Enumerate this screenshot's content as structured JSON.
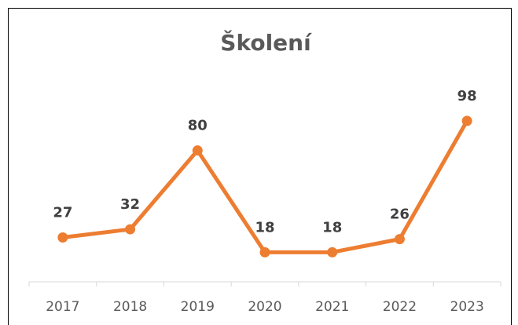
{
  "chart_data": {
    "type": "line",
    "title": "Školení",
    "categories": [
      "2017",
      "2018",
      "2019",
      "2020",
      "2021",
      "2022",
      "2023"
    ],
    "series": [
      {
        "color": "#ed7d31",
        "values": [
          27,
          32,
          80,
          18,
          18,
          26,
          98
        ]
      }
    ],
    "ylim": [
      0,
      120
    ]
  }
}
